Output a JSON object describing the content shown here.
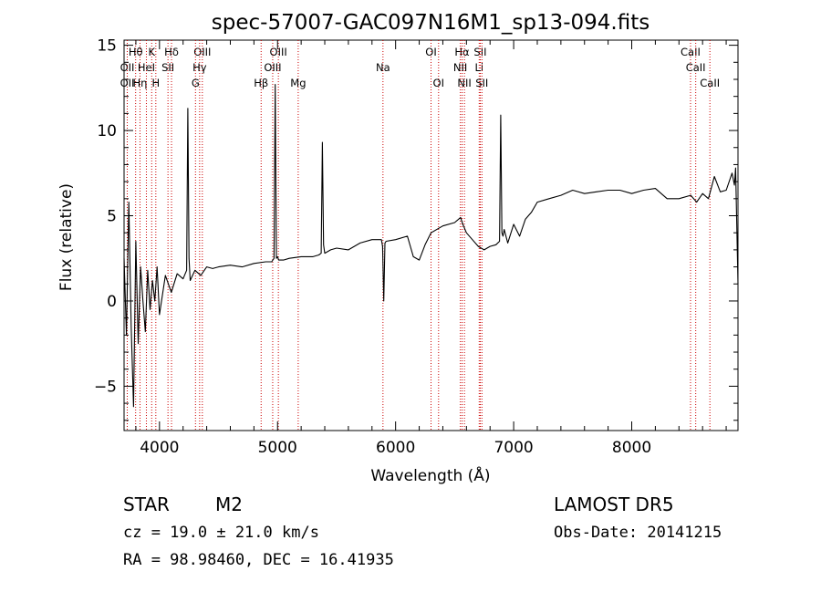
{
  "chart_data": {
    "type": "line",
    "title": "spec-57007-GAC097N16M1_sp13-094.fits",
    "xlabel": "Wavelength (Å)",
    "ylabel": "Flux (relative)",
    "xlim": [
      3700,
      8900
    ],
    "ylim": [
      -7.6,
      15.3
    ],
    "xticks": [
      4000,
      5000,
      6000,
      7000,
      8000
    ],
    "yticks": [
      -5,
      0,
      5,
      10,
      15
    ],
    "grid": false,
    "series": [
      {
        "color": "#000000",
        "x": [
          3700,
          3720,
          3740,
          3760,
          3780,
          3800,
          3820,
          3840,
          3860,
          3880,
          3900,
          3920,
          3940,
          3960,
          3980,
          4000,
          4050,
          4100,
          4150,
          4200,
          4230,
          4240,
          4250,
          4260,
          4300,
          4350,
          4400,
          4450,
          4500,
          4600,
          4700,
          4800,
          4900,
          4950,
          4970,
          4980,
          4990,
          5000,
          5010,
          5050,
          5100,
          5200,
          5300,
          5350,
          5370,
          5380,
          5390,
          5400,
          5450,
          5500,
          5600,
          5700,
          5800,
          5880,
          5890,
          5900,
          5910,
          5920,
          6000,
          6100,
          6150,
          6200,
          6250,
          6300,
          6400,
          6500,
          6550,
          6570,
          6600,
          6650,
          6700,
          6750,
          6800,
          6850,
          6880,
          6890,
          6900,
          6910,
          6920,
          6950,
          7000,
          7050,
          7100,
          7150,
          7200,
          7300,
          7400,
          7500,
          7600,
          7700,
          7800,
          7900,
          8000,
          8100,
          8200,
          8300,
          8400,
          8500,
          8550,
          8600,
          8650,
          8700,
          8750,
          8800,
          8850,
          8870,
          8880,
          8900
        ],
        "y": [
          2.5,
          -2.0,
          5.8,
          -1.5,
          -6.2,
          3.5,
          -2.5,
          2.0,
          0.0,
          -1.8,
          1.8,
          -0.5,
          1.2,
          0.0,
          2.0,
          -0.8,
          1.5,
          0.5,
          1.6,
          1.3,
          1.8,
          11.3,
          2.5,
          1.2,
          1.8,
          1.5,
          2.0,
          1.9,
          2.0,
          2.1,
          2.0,
          2.2,
          2.3,
          2.3,
          2.5,
          12.7,
          2.5,
          2.6,
          2.4,
          2.4,
          2.5,
          2.6,
          2.6,
          2.7,
          2.8,
          9.3,
          3.3,
          2.8,
          3.0,
          3.1,
          3.0,
          3.4,
          3.6,
          3.6,
          3.2,
          0.0,
          3.4,
          3.5,
          3.6,
          3.8,
          2.6,
          2.4,
          3.3,
          4.0,
          4.4,
          4.6,
          4.9,
          4.5,
          4.0,
          3.6,
          3.2,
          3.0,
          3.2,
          3.3,
          3.5,
          10.9,
          4.0,
          3.8,
          4.2,
          3.4,
          4.5,
          3.8,
          4.8,
          5.2,
          5.8,
          6.0,
          6.2,
          6.5,
          6.3,
          6.4,
          6.5,
          6.5,
          6.3,
          6.5,
          6.6,
          6.0,
          6.0,
          6.2,
          5.8,
          6.3,
          6.0,
          7.3,
          6.4,
          6.5,
          7.5,
          6.8,
          7.8,
          1.0
        ]
      }
    ],
    "spectral_lines": [
      {
        "name": "Hθ",
        "x": 3798,
        "row": 0
      },
      {
        "name": "OII",
        "x": 3727,
        "row": 1
      },
      {
        "name": "OII",
        "x": 3727,
        "row": 2
      },
      {
        "name": "Hη",
        "x": 3835,
        "row": 2
      },
      {
        "name": "HeI",
        "x": 3889,
        "row": 1
      },
      {
        "name": "K",
        "x": 3934,
        "row": 0
      },
      {
        "name": "H",
        "x": 3969,
        "row": 2
      },
      {
        "name": "SII",
        "x": 4072,
        "row": 1
      },
      {
        "name": "Hδ",
        "x": 4102,
        "row": 0
      },
      {
        "name": "OIII",
        "x": 4363,
        "row": 0
      },
      {
        "name": "Hγ",
        "x": 4340,
        "row": 1
      },
      {
        "name": "G",
        "x": 4305,
        "row": 2
      },
      {
        "name": "Hβ",
        "x": 4861,
        "row": 2
      },
      {
        "name": "OIII",
        "x": 5007,
        "row": 0
      },
      {
        "name": "OIII",
        "x": 4959,
        "row": 1
      },
      {
        "name": "Mg",
        "x": 5175,
        "row": 2
      },
      {
        "name": "Na",
        "x": 5893,
        "row": 1
      },
      {
        "name": "OI",
        "x": 6300,
        "row": 0
      },
      {
        "name": "OI",
        "x": 6364,
        "row": 2
      },
      {
        "name": "Hα",
        "x": 6563,
        "row": 0
      },
      {
        "name": "NII",
        "x": 6548,
        "row": 1
      },
      {
        "name": "NII",
        "x": 6583,
        "row": 2
      },
      {
        "name": "SII",
        "x": 6717,
        "row": 0
      },
      {
        "name": "Li",
        "x": 6708,
        "row": 1
      },
      {
        "name": "SII",
        "x": 6731,
        "row": 2
      },
      {
        "name": "CaII",
        "x": 8498,
        "row": 0
      },
      {
        "name": "CaII",
        "x": 8542,
        "row": 1
      },
      {
        "name": "CaII",
        "x": 8662,
        "row": 2
      }
    ],
    "line_marker_color": "#cc0000"
  },
  "info": {
    "object_class": "STAR",
    "subclass": "M2",
    "survey": "LAMOST DR5",
    "redshift_text": "cz = 19.0 ± 21.0 km/s",
    "obs_date": "Obs-Date: 20141215",
    "coords": "RA =  98.98460, DEC =  16.41935"
  }
}
